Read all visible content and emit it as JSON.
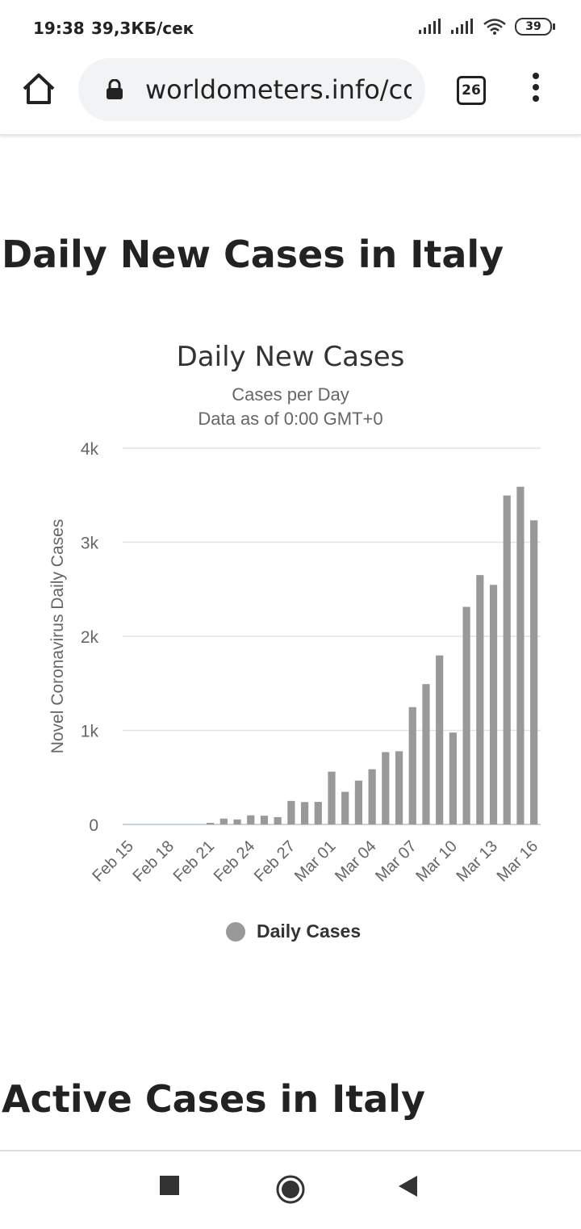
{
  "status": {
    "time": "19:38",
    "speed": "39,3КБ/сек",
    "battery": "39"
  },
  "browser": {
    "url": "worldometers.info/coronavirus/country/italy/",
    "tab_count": "26"
  },
  "page": {
    "heading1": "Daily New Cases in Italy",
    "heading2": "Active Cases in Italy"
  },
  "chart_data": {
    "type": "bar",
    "title": "Daily New Cases",
    "subtitle": "Cases per Day",
    "subtitle2": "Data as of 0:00 GMT+0",
    "ylabel": "Novel Coronavirus Daily Cases",
    "ylim": [
      0,
      4000
    ],
    "yticks": [
      0,
      1000,
      2000,
      3000,
      4000
    ],
    "ytick_labels": [
      "0",
      "1k",
      "2k",
      "3k",
      "4k"
    ],
    "xtick_labels": [
      "Feb 15",
      "Feb 18",
      "Feb 21",
      "Feb 24",
      "Feb 27",
      "Mar 01",
      "Mar 04",
      "Mar 07",
      "Mar 10",
      "Mar 13",
      "Mar 16"
    ],
    "categories": [
      "Feb 15",
      "Feb 16",
      "Feb 17",
      "Feb 18",
      "Feb 19",
      "Feb 20",
      "Feb 21",
      "Feb 22",
      "Feb 23",
      "Feb 24",
      "Feb 25",
      "Feb 26",
      "Feb 27",
      "Feb 28",
      "Feb 29",
      "Mar 01",
      "Mar 02",
      "Mar 03",
      "Mar 04",
      "Mar 05",
      "Mar 06",
      "Mar 07",
      "Mar 08",
      "Mar 09",
      "Mar 10",
      "Mar 11",
      "Mar 12",
      "Mar 13",
      "Mar 14",
      "Mar 15",
      "Mar 16"
    ],
    "series": [
      {
        "name": "Daily Cases",
        "color": "#999999",
        "values": [
          0,
          0,
          0,
          0,
          0,
          0,
          17,
          62,
          53,
          97,
          93,
          78,
          250,
          238,
          240,
          561,
          347,
          466,
          587,
          769,
          778,
          1247,
          1492,
          1797,
          977,
          2313,
          2651,
          2547,
          3497,
          3590,
          3233
        ]
      }
    ],
    "grid": true,
    "legend": "bottom-center"
  },
  "nav": {
    "recents": "recents-square-icon",
    "home": "home-circle-icon",
    "back": "back-triangle-icon"
  }
}
